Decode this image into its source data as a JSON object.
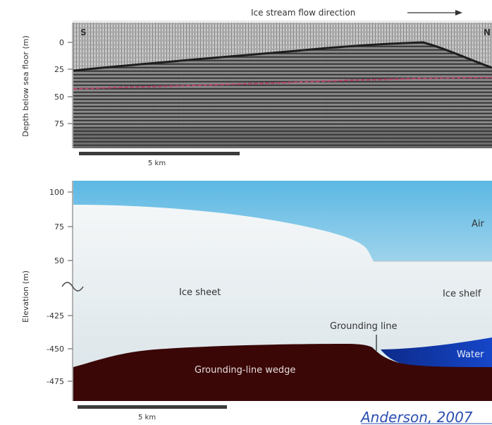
{
  "top_panel": {
    "flow_label": "Ice stream flow direction",
    "corner_left": "S",
    "corner_right": "N",
    "ylabel": "Depth below sea floor (m)",
    "y_ticks": [
      "0",
      "25",
      "50",
      "75"
    ],
    "scale_label": "5 km"
  },
  "bottom_panel": {
    "ylabel": "Elevation (m)",
    "y_ticks": [
      "100",
      "75",
      "50",
      "-425",
      "-450",
      "-475"
    ],
    "labels": {
      "air": "Air",
      "ice_sheet": "Ice sheet",
      "ice_shelf": "Ice shelf",
      "grounding_line": "Grounding line",
      "water": "Water",
      "wedge": "Grounding-line wedge"
    },
    "scale_label": "5 km"
  },
  "credit": "Anderson, 2007",
  "colors": {
    "sky_top": "#5cb8e4",
    "sky_bottom": "#eef6fa",
    "ice": "#e7eef2",
    "water": "#0b2f9c",
    "wedge": "#3a0606",
    "reflector": "#b2456b"
  }
}
